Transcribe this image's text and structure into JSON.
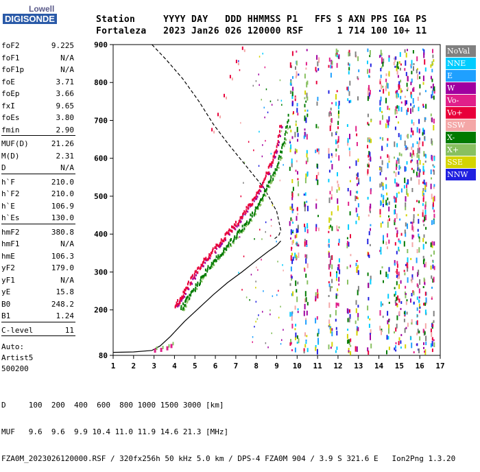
{
  "logo": {
    "brand": "Lowell",
    "product": "DIGISONDE"
  },
  "header": {
    "labels": [
      "Station",
      "YYYY",
      "DAY",
      "DDD",
      "HHMMSS",
      "P1",
      "FFS",
      "S",
      "AXN",
      "PPS",
      "IGA",
      "PS"
    ],
    "values": [
      "Fortaleza",
      "2023",
      "Jan26",
      "026",
      "120000",
      "RSF",
      "",
      "1",
      "714",
      "100",
      "10+",
      "11"
    ]
  },
  "params": {
    "group1": [
      {
        "k": "foF2",
        "v": "9.225"
      },
      {
        "k": "foF1",
        "v": "N/A"
      },
      {
        "k": "foF1p",
        "v": "N/A"
      },
      {
        "k": "foE",
        "v": "3.71"
      },
      {
        "k": "foEp",
        "v": "3.66"
      },
      {
        "k": "fxI",
        "v": "9.65"
      },
      {
        "k": "foEs",
        "v": "3.80"
      },
      {
        "k": "fmin",
        "v": "2.90"
      }
    ],
    "group2": [
      {
        "k": "MUF(D)",
        "v": "21.26"
      },
      {
        "k": "M(D)",
        "v": "2.31"
      },
      {
        "k": "D",
        "v": "N/A"
      }
    ],
    "group3": [
      {
        "k": "h`F",
        "v": "210.0"
      },
      {
        "k": "h`F2",
        "v": "210.0"
      },
      {
        "k": "h`E",
        "v": "106.9"
      },
      {
        "k": "h`Es",
        "v": "130.0"
      }
    ],
    "group4": [
      {
        "k": "hmF2",
        "v": "380.8"
      },
      {
        "k": "hmF1",
        "v": "N/A"
      },
      {
        "k": "hmE",
        "v": "106.3"
      },
      {
        "k": "yF2",
        "v": "179.0"
      },
      {
        "k": "yF1",
        "v": "N/A"
      },
      {
        "k": "yE",
        "v": "15.8"
      },
      {
        "k": "B0",
        "v": "248.2"
      },
      {
        "k": "B1",
        "v": "1.24"
      }
    ],
    "group5": [
      {
        "k": "C-level",
        "v": "11"
      }
    ],
    "autoscaling": [
      "Auto:",
      "Artist5",
      "500200"
    ]
  },
  "legend": [
    {
      "label": "NoVal",
      "color": "#808080"
    },
    {
      "label": "NNE",
      "color": "#00ccff"
    },
    {
      "label": "E",
      "color": "#1fa0ff"
    },
    {
      "label": "W",
      "color": "#a000a0"
    },
    {
      "label": "Vo-",
      "color": "#e0208a"
    },
    {
      "label": "Vo+",
      "color": "#e8003a"
    },
    {
      "label": "SSW",
      "color": "#f4a7a7"
    },
    {
      "label": "X-",
      "color": "#007a00"
    },
    {
      "label": "X+",
      "color": "#88c060"
    },
    {
      "label": "SSE",
      "color": "#d4d400"
    },
    {
      "label": "NNW",
      "color": "#2020e0"
    }
  ],
  "chart_data": {
    "type": "scatter",
    "title": "",
    "xlabel": "",
    "ylabel": "",
    "xlim": [
      1,
      17
    ],
    "ylim": [
      80,
      900
    ],
    "x_ticks": [
      1,
      2,
      3,
      4,
      5,
      6,
      7,
      8,
      9,
      10,
      11,
      12,
      13,
      14,
      15,
      16,
      17
    ],
    "y_ticks": [
      80,
      200,
      300,
      400,
      500,
      600,
      700,
      800,
      900
    ],
    "series": [
      {
        "style": "solid",
        "color": "#000000",
        "x": [
          1.0,
          2.0,
          2.9,
          3.3,
          3.8,
          4.5,
          5.2,
          5.9,
          6.6,
          7.3,
          8.0,
          8.6,
          9.0,
          9.2
        ],
        "y": [
          88,
          89,
          93,
          105,
          130,
          170,
          205,
          240,
          272,
          300,
          330,
          355,
          370,
          382
        ]
      },
      {
        "style": "dashed",
        "color": "#000000",
        "x": [
          2.9,
          3.6,
          4.4,
          5.2,
          5.9,
          6.6,
          7.2,
          7.8,
          8.4,
          9.0,
          9.2,
          9.1,
          8.9
        ],
        "y": [
          900,
          860,
          810,
          750,
          690,
          640,
          600,
          560,
          520,
          460,
          410,
          396,
          388
        ]
      },
      {
        "name": "Vo+",
        "color": "#e8003a",
        "x": [
          4.0,
          4.3,
          4.6,
          5.0,
          5.4,
          5.8,
          6.2,
          6.6,
          7.0,
          7.4,
          7.8,
          8.2,
          8.6,
          8.9,
          9.2
        ],
        "y": [
          212,
          235,
          265,
          300,
          330,
          355,
          380,
          405,
          430,
          460,
          490,
          530,
          575,
          620,
          700
        ]
      },
      {
        "name": "X-",
        "color": "#007a00",
        "x": [
          4.3,
          4.6,
          5.0,
          5.4,
          5.8,
          6.2,
          6.6,
          7.0,
          7.4,
          7.8,
          8.2,
          8.6,
          9.0,
          9.3,
          9.6
        ],
        "y": [
          205,
          230,
          262,
          295,
          325,
          350,
          375,
          400,
          425,
          455,
          490,
          535,
          580,
          640,
          720
        ]
      }
    ],
    "annotations": {
      "f_ticks_labels": [
        "1",
        "2",
        "3",
        "4",
        "5",
        "6",
        "7",
        "8",
        "9",
        "10",
        "11",
        "12",
        "13",
        "14",
        "15",
        "16",
        "17"
      ]
    }
  },
  "footer": {
    "d_line": "D     100  200  400  600  800 1000 1500 3000 [km]",
    "muf_line": "MUF   9.6  9.6  9.9 10.4 11.0 11.9 14.6 21.3 [MHz]",
    "file_line": "FZA0M_2023026120000.RSF / 320fx256h 50 kHz 5.0 km / DPS-4 FZA0M 904 / 3.9 S 321.6 E   Ion2Png 1.3.20"
  }
}
